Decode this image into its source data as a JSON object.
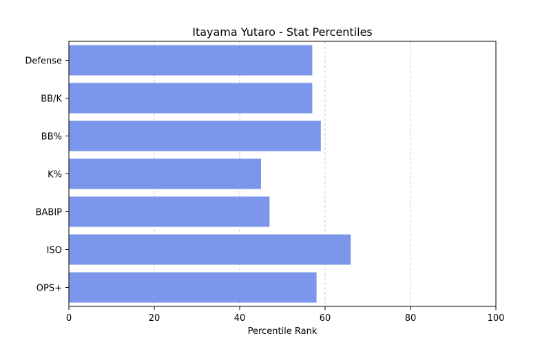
{
  "chart_data": {
    "type": "bar",
    "orientation": "horizontal",
    "title": "Itayama Yutaro - Stat Percentiles",
    "xlabel": "Percentile Rank",
    "ylabel": "",
    "categories": [
      "Defense",
      "BB/K",
      "BB%",
      "K%",
      "BABIP",
      "ISO",
      "OPS+"
    ],
    "values": [
      57,
      57,
      59,
      45,
      47,
      66,
      58
    ],
    "xlim": [
      0,
      100
    ],
    "xticks": [
      0,
      20,
      40,
      60,
      80,
      100
    ],
    "grid": "x-dashed",
    "bar_color": "#7b96ea"
  }
}
